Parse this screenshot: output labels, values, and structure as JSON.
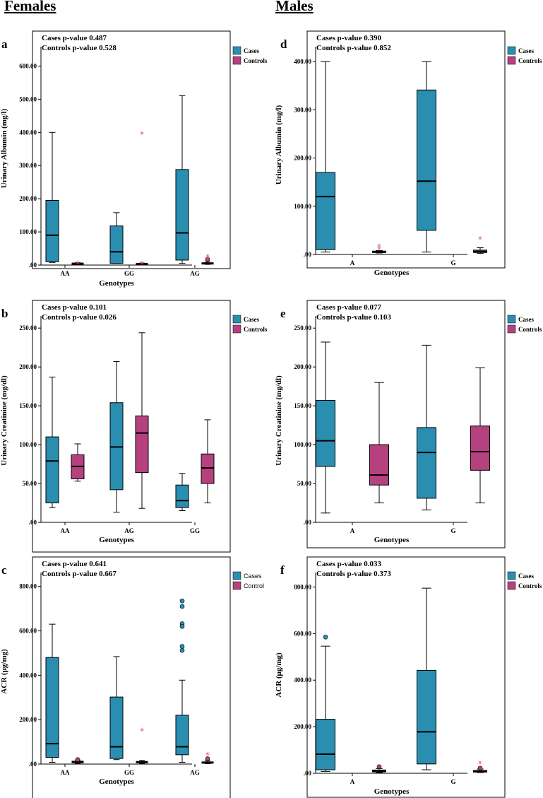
{
  "headings": {
    "females": "Females",
    "males": "Males"
  },
  "colors": {
    "cases": "#2a8eb0",
    "controls": "#b5417e",
    "outlier_star": "#d9508f"
  },
  "chart_data": [
    {
      "id": "a",
      "type": "box",
      "letter": "a",
      "annotations": [
        "Cases p-value 0.487",
        "Controls p-value 0.528"
      ],
      "ylabel": "Urinary Albumin (mg/l)",
      "xlabel": "Genotypes",
      "ylim": [
        0,
        650
      ],
      "yticks": [
        0,
        100,
        200,
        300,
        400,
        500,
        600
      ],
      "ytick_labels": [
        ".00",
        "100.00",
        "200.00",
        "300.00",
        "400.00",
        "500.00",
        "600.00"
      ],
      "categories": [
        "AA",
        "GG",
        "AG"
      ],
      "legend": [
        "Cases",
        "Controls"
      ],
      "legend_style": "bold",
      "series": [
        {
          "name": "Cases",
          "boxes": [
            {
              "min": 8,
              "q1": 10,
              "median": 90,
              "q3": 195,
              "max": 400,
              "outliers": [],
              "extremes": []
            },
            {
              "min": 5,
              "q1": 5,
              "median": 40,
              "q3": 118,
              "max": 158,
              "outliers": [],
              "extremes": []
            },
            {
              "min": 5,
              "q1": 15,
              "median": 97,
              "q3": 288,
              "max": 511,
              "outliers": [],
              "extremes": []
            }
          ]
        },
        {
          "name": "Controls",
          "boxes": [
            {
              "min": 2,
              "q1": 3,
              "median": 5,
              "q3": 6,
              "max": 7,
              "outliers": [],
              "extremes": [
                10
              ]
            },
            {
              "min": 2,
              "q1": 3,
              "median": 4,
              "q3": 5,
              "max": 6,
              "outliers": [],
              "extremes": [
                400,
                8
              ]
            },
            {
              "min": 2,
              "q1": 3,
              "median": 5,
              "q3": 7,
              "max": 9,
              "outliers": [
                17
              ],
              "extremes": [
                30,
                22
              ]
            }
          ]
        }
      ]
    },
    {
      "id": "b",
      "type": "box",
      "letter": "b",
      "annotations": [
        "Cases p-value  0.101",
        "Controls p-value 0.026"
      ],
      "ylabel": "Urinary Creatinine (mg/dl)",
      "xlabel": "Genotypes",
      "ylim": [
        0,
        262
      ],
      "yticks": [
        0,
        50,
        100,
        150,
        200,
        250
      ],
      "ytick_labels": [
        ".00",
        "50.00",
        "100.00",
        "150.00",
        "200.00",
        "250.00"
      ],
      "categories": [
        "AA",
        "AG",
        "GG"
      ],
      "legend": [
        "Cases",
        "Controls"
      ],
      "legend_style": "bold",
      "series": [
        {
          "name": "Cases",
          "boxes": [
            {
              "min": 19,
              "q1": 25,
              "median": 79,
              "q3": 110,
              "max": 187,
              "outliers": [],
              "extremes": []
            },
            {
              "min": 13,
              "q1": 42,
              "median": 97,
              "q3": 154,
              "max": 207,
              "outliers": [],
              "extremes": []
            },
            {
              "min": 15,
              "q1": 19,
              "median": 28,
              "q3": 48,
              "max": 63,
              "outliers": [],
              "extremes": []
            }
          ]
        },
        {
          "name": "Controls",
          "boxes": [
            {
              "min": 53,
              "q1": 56,
              "median": 72,
              "q3": 87,
              "max": 101,
              "outliers": [],
              "extremes": []
            },
            {
              "min": 18,
              "q1": 64,
              "median": 115,
              "q3": 137,
              "max": 244,
              "outliers": [],
              "extremes": []
            },
            {
              "min": 25,
              "q1": 50,
              "median": 70,
              "q3": 88,
              "max": 132,
              "outliers": [],
              "extremes": []
            }
          ]
        }
      ]
    },
    {
      "id": "c",
      "type": "box",
      "letter": "c",
      "annotations": [
        "Cases p-value 0.641",
        "Controls p-value 0.667"
      ],
      "ylabel": "ACR (μg/mg)",
      "xlabel": "Genotypes",
      "ylim": [
        0,
        850
      ],
      "yticks": [
        0,
        200,
        400,
        600,
        800
      ],
      "ytick_labels": [
        ".00",
        "200.00",
        "400.00",
        "600.00",
        "800.00"
      ],
      "categories": [
        "AA",
        "GG",
        "AG"
      ],
      "legend": [
        "Cases",
        "Control"
      ],
      "legend_style": "plain",
      "series": [
        {
          "name": "Cases",
          "boxes": [
            {
              "min": 8,
              "q1": 30,
              "median": 92,
              "q3": 480,
              "max": 630,
              "outliers": [],
              "extremes": []
            },
            {
              "min": 20,
              "q1": 25,
              "median": 78,
              "q3": 302,
              "max": 484,
              "outliers": [],
              "extremes": []
            },
            {
              "min": 8,
              "q1": 42,
              "median": 78,
              "q3": 220,
              "max": 378,
              "outliers": [
                735,
                710,
                632,
                620,
                530,
                512
              ],
              "extremes": []
            }
          ]
        },
        {
          "name": "Controls",
          "boxes": [
            {
              "min": 3,
              "q1": 6,
              "median": 10,
              "q3": 13,
              "max": 18,
              "outliers": [
                20
              ],
              "extremes": []
            },
            {
              "min": 3,
              "q1": 6,
              "median": 9,
              "q3": 12,
              "max": 17,
              "outliers": [],
              "extremes": [
                158
              ]
            },
            {
              "min": 2,
              "q1": 4,
              "median": 7,
              "q3": 10,
              "max": 14,
              "outliers": [
                24
              ],
              "extremes": [
                50
              ]
            }
          ]
        }
      ]
    },
    {
      "id": "d",
      "type": "box",
      "letter": "d",
      "annotations": [
        "Cases p-value 0.390",
        "Controls p-value 0.852"
      ],
      "ylabel": "Urinary Albumin (mg/l)",
      "xlabel": "Genotypes",
      "ylim": [
        0,
        425
      ],
      "yticks": [
        0,
        100,
        200,
        300,
        400
      ],
      "ytick_labels": [
        ".00",
        "100.00",
        "200.00",
        "300.00",
        "400.00"
      ],
      "categories": [
        "A",
        "G"
      ],
      "legend": [
        "Cases",
        "Controls"
      ],
      "legend_style": "bold",
      "series": [
        {
          "name": "Cases",
          "boxes": [
            {
              "min": 5,
              "q1": 10,
              "median": 120,
              "q3": 170,
              "max": 400,
              "outliers": [],
              "extremes": []
            },
            {
              "min": 5,
              "q1": 50,
              "median": 152,
              "q3": 341,
              "max": 400,
              "outliers": [],
              "extremes": []
            }
          ]
        },
        {
          "name": "Controls",
          "boxes": [
            {
              "min": 3,
              "q1": 4,
              "median": 5,
              "q3": 7,
              "max": 8,
              "outliers": [],
              "extremes": [
                20,
                14
              ]
            },
            {
              "min": 2,
              "q1": 4,
              "median": 6,
              "q3": 9,
              "max": 14,
              "outliers": [],
              "extremes": [
                35
              ]
            }
          ]
        }
      ]
    },
    {
      "id": "e",
      "type": "box",
      "letter": "e",
      "annotations": [
        "Cases p-value 0.077",
        "Controls p-value 0.103"
      ],
      "ylabel": "Urinary Creatinine (mg/dl)",
      "xlabel": "Genotypes",
      "ylim": [
        0,
        262
      ],
      "yticks": [
        0,
        50,
        100,
        150,
        200,
        250
      ],
      "ytick_labels": [
        ".00",
        "50.00",
        "100.00",
        "150.00",
        "200.00",
        "250.00"
      ],
      "categories": [
        "A",
        "G"
      ],
      "legend": [
        "Cases",
        "Controls"
      ],
      "legend_style": "bold",
      "series": [
        {
          "name": "Cases",
          "boxes": [
            {
              "min": 12,
              "q1": 72,
              "median": 105,
              "q3": 157,
              "max": 232,
              "outliers": [],
              "extremes": []
            },
            {
              "min": 16,
              "q1": 31,
              "median": 90,
              "q3": 122,
              "max": 228,
              "outliers": [],
              "extremes": []
            }
          ]
        },
        {
          "name": "Controls",
          "boxes": [
            {
              "min": 25,
              "q1": 48,
              "median": 61,
              "q3": 100,
              "max": 180,
              "outliers": [],
              "extremes": []
            },
            {
              "min": 25,
              "q1": 67,
              "median": 91,
              "q3": 124,
              "max": 199,
              "outliers": [],
              "extremes": []
            }
          ]
        }
      ]
    },
    {
      "id": "f",
      "type": "box",
      "letter": "f",
      "annotations": [
        "Cases p-value 0.033",
        "Controls p-value 0.373"
      ],
      "ylabel": "ACR (μg/mg)",
      "xlabel": "Genotypes",
      "ylim": [
        0,
        850
      ],
      "yticks": [
        0,
        200,
        400,
        600,
        800
      ],
      "ytick_labels": [
        ".00",
        "200.00",
        "400.00",
        "600.00",
        "800.00"
      ],
      "categories": [
        "A",
        "G"
      ],
      "legend": [
        "Cases",
        "Controls"
      ],
      "legend_style": "bold",
      "series": [
        {
          "name": "Cases",
          "boxes": [
            {
              "min": 8,
              "q1": 15,
              "median": 82,
              "q3": 232,
              "max": 546,
              "outliers": [
                585
              ],
              "extremes": []
            },
            {
              "min": 15,
              "q1": 40,
              "median": 178,
              "q3": 442,
              "max": 795,
              "outliers": [],
              "extremes": []
            }
          ]
        },
        {
          "name": "Controls",
          "boxes": [
            {
              "min": 3,
              "q1": 6,
              "median": 10,
              "q3": 14,
              "max": 20,
              "outliers": [
                28
              ],
              "extremes": []
            },
            {
              "min": 3,
              "q1": 5,
              "median": 8,
              "q3": 12,
              "max": 18,
              "outliers": [
                22
              ],
              "extremes": [
                48
              ]
            }
          ]
        }
      ]
    }
  ]
}
